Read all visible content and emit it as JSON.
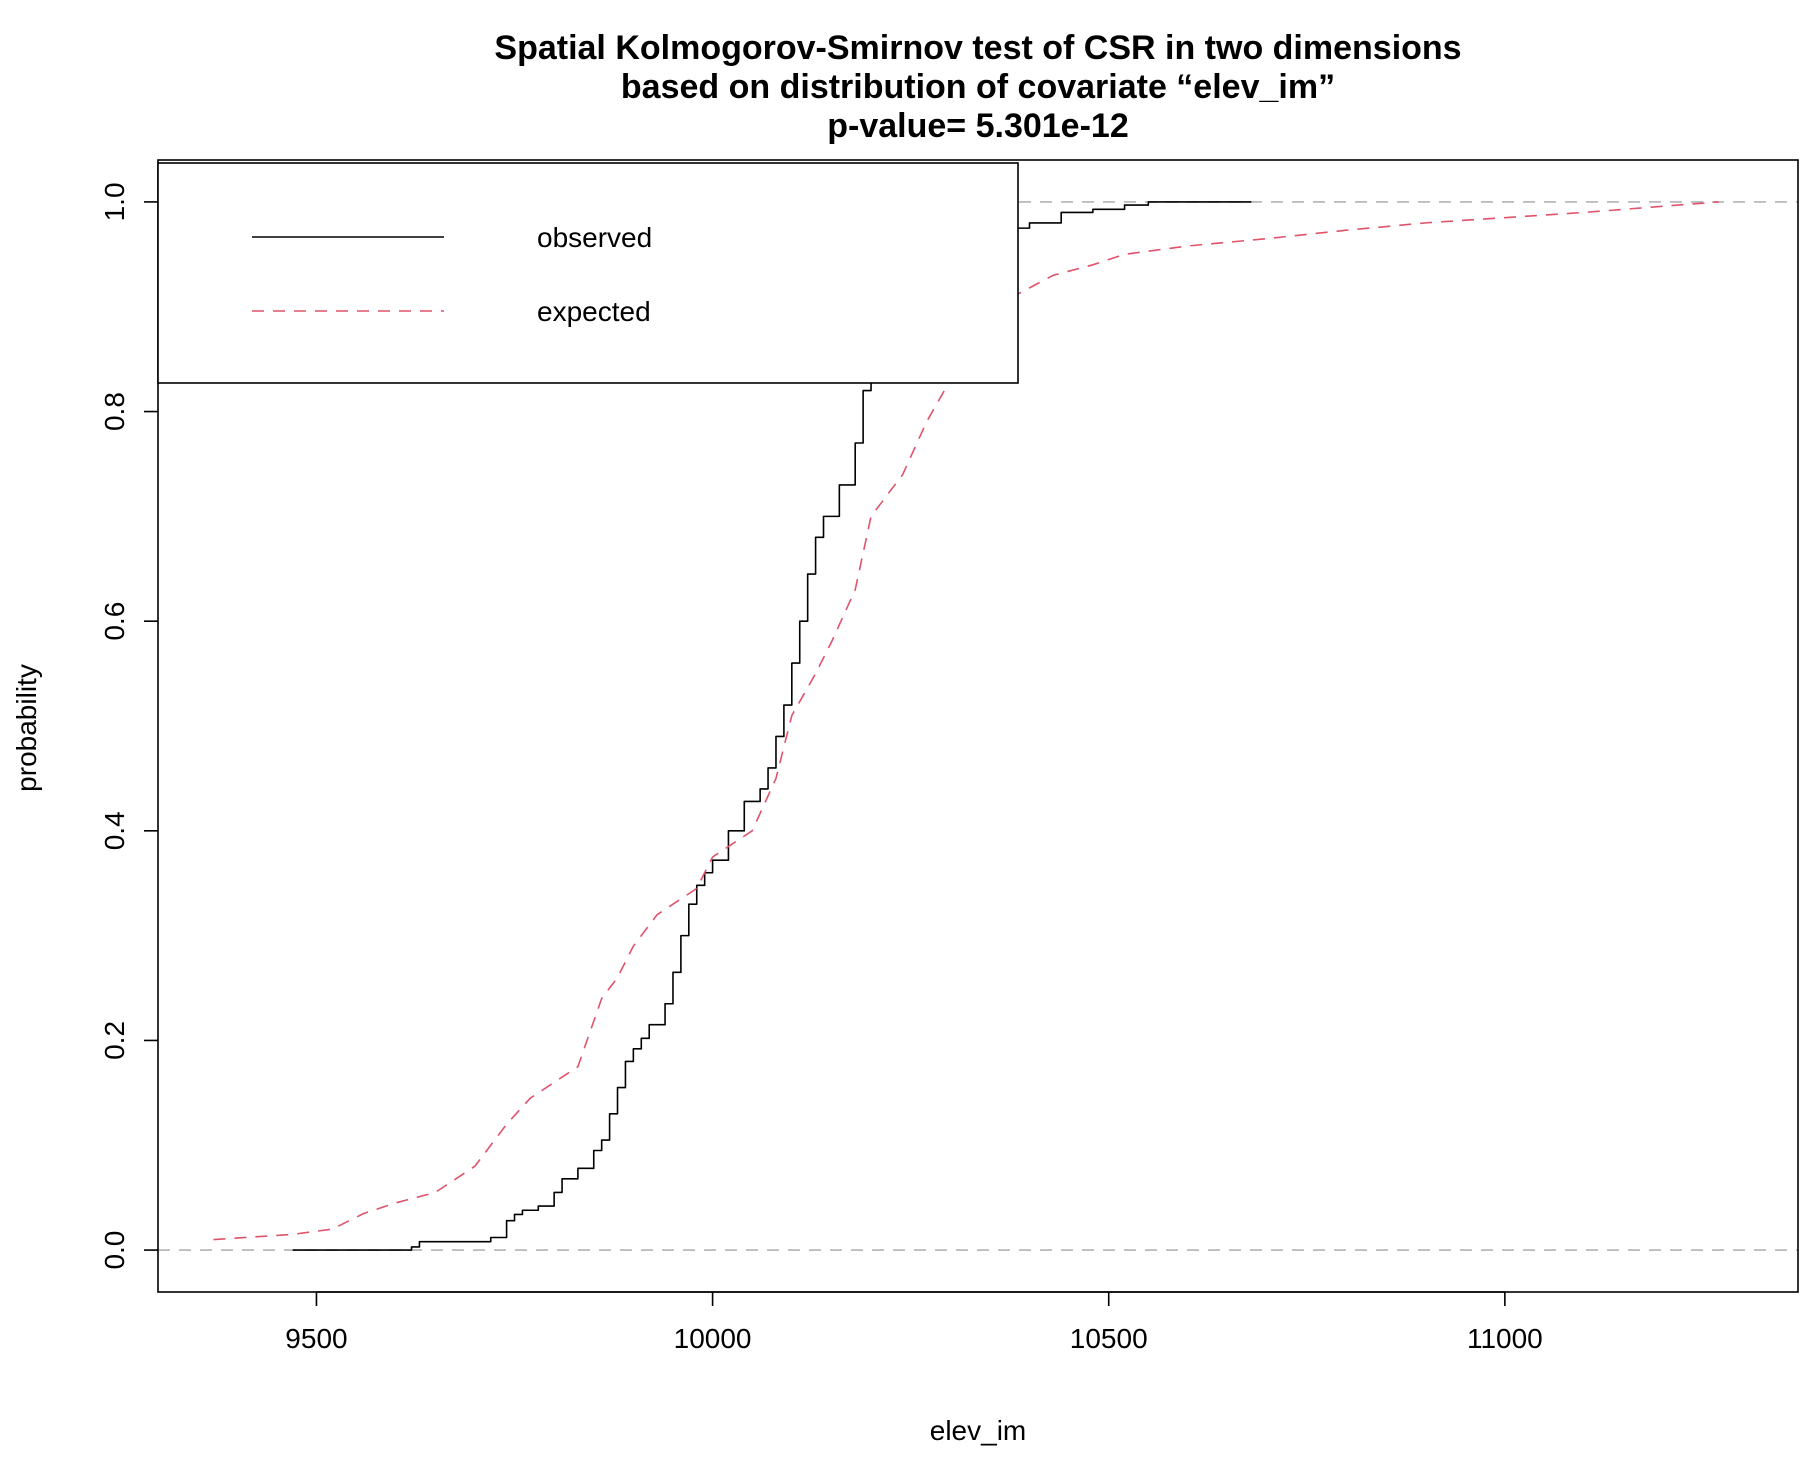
{
  "chart_data": {
    "type": "line",
    "title_lines": [
      "Spatial Kolmogorov-Smirnov test of CSR in two dimensions",
      "based on distribution of covariate “elev_im”",
      "p-value= 5.301e-12"
    ],
    "xlabel": "elev_im",
    "ylabel": "probability",
    "xlim": [
      9300,
      11370
    ],
    "ylim": [
      -0.04,
      1.04
    ],
    "x_ticks": [
      9500,
      10000,
      10500,
      11000
    ],
    "x_tick_labels": [
      "9500",
      "10000",
      "10500",
      "11000"
    ],
    "y_ticks": [
      0.0,
      0.2,
      0.4,
      0.6,
      0.8,
      1.0
    ],
    "y_tick_labels": [
      "0.0",
      "0.2",
      "0.4",
      "0.6",
      "0.8",
      "1.0"
    ],
    "reference_lines": [
      0,
      1
    ],
    "legend": {
      "placement": "top-left",
      "entries": [
        "observed",
        "expected"
      ]
    },
    "series": [
      {
        "name": "observed",
        "color": "#000000",
        "style": "solid",
        "x": [
          9470,
          9620,
          9630,
          9700,
          9720,
          9740,
          9750,
          9760,
          9780,
          9800,
          9810,
          9830,
          9850,
          9860,
          9870,
          9880,
          9890,
          9900,
          9910,
          9920,
          9940,
          9950,
          9960,
          9970,
          9980,
          9990,
          10000,
          10020,
          10040,
          10060,
          10070,
          10080,
          10090,
          10100,
          10110,
          10120,
          10130,
          10140,
          10160,
          10180,
          10190,
          10200,
          10220,
          10240,
          10260,
          10290,
          10320,
          10360,
          10400,
          10440,
          10480,
          10520,
          10550,
          10600,
          10680
        ],
        "y": [
          0.0,
          0.003,
          0.008,
          0.008,
          0.012,
          0.028,
          0.034,
          0.038,
          0.042,
          0.055,
          0.068,
          0.078,
          0.095,
          0.105,
          0.13,
          0.155,
          0.18,
          0.192,
          0.202,
          0.215,
          0.235,
          0.265,
          0.3,
          0.33,
          0.348,
          0.36,
          0.372,
          0.4,
          0.428,
          0.44,
          0.46,
          0.49,
          0.52,
          0.56,
          0.6,
          0.645,
          0.68,
          0.7,
          0.73,
          0.77,
          0.82,
          0.86,
          0.875,
          0.9,
          0.93,
          0.95,
          0.965,
          0.975,
          0.98,
          0.99,
          0.993,
          0.997,
          1.0,
          1.0,
          1.0
        ]
      },
      {
        "name": "expected",
        "color": "#df536b",
        "style": "dashed",
        "x": [
          9370,
          9470,
          9520,
          9560,
          9600,
          9650,
          9680,
          9700,
          9720,
          9740,
          9770,
          9790,
          9830,
          9860,
          9880,
          9900,
          9930,
          9960,
          9980,
          10000,
          10030,
          10050,
          10080,
          10100,
          10130,
          10150,
          10180,
          10200,
          10240,
          10270,
          10300,
          10340,
          10380,
          10430,
          10480,
          10520,
          10600,
          10700,
          10800,
          10900,
          11000,
          11100,
          11270
        ],
        "y": [
          0.01,
          0.015,
          0.02,
          0.035,
          0.045,
          0.055,
          0.07,
          0.08,
          0.1,
          0.12,
          0.145,
          0.155,
          0.175,
          0.24,
          0.26,
          0.29,
          0.32,
          0.335,
          0.345,
          0.375,
          0.39,
          0.4,
          0.45,
          0.51,
          0.55,
          0.58,
          0.63,
          0.7,
          0.74,
          0.79,
          0.83,
          0.87,
          0.91,
          0.93,
          0.94,
          0.95,
          0.958,
          0.965,
          0.973,
          0.98,
          0.985,
          0.99,
          1.0
        ]
      }
    ]
  }
}
